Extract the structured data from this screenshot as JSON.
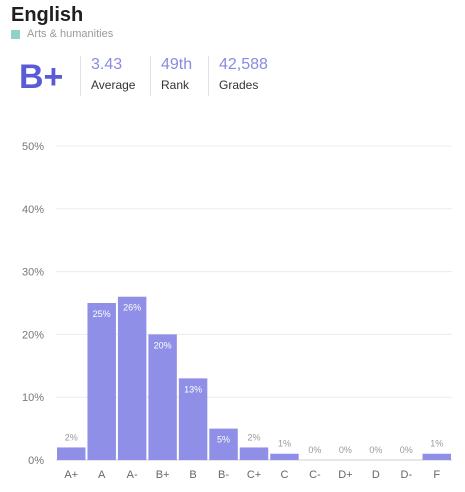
{
  "course": {
    "title": "English",
    "category": "Arts & humanities",
    "category_color": "#8fd3c7",
    "letter_grade": "B+"
  },
  "stats": [
    {
      "value": "3.43",
      "label": "Average"
    },
    {
      "value": "49th",
      "label": "Rank"
    },
    {
      "value": "42,588",
      "label": "Grades"
    }
  ],
  "colors": {
    "accent": "#5b5bd6",
    "bar": "#8f8fe8"
  },
  "chart_data": {
    "type": "bar",
    "categories": [
      "A+",
      "A",
      "A-",
      "B+",
      "B",
      "B-",
      "C+",
      "C",
      "C-",
      "D+",
      "D",
      "D-",
      "F"
    ],
    "values": [
      2,
      25,
      26,
      20,
      13,
      5,
      2,
      1,
      0,
      0,
      0,
      0,
      1
    ],
    "data_labels": [
      "2%",
      "25%",
      "26%",
      "20%",
      "13%",
      "5%",
      "2%",
      "1%",
      "0%",
      "0%",
      "0%",
      "0%",
      "1%"
    ],
    "y_ticks": [
      "0%",
      "10%",
      "20%",
      "30%",
      "40%",
      "50%"
    ],
    "ylim": [
      0,
      50
    ],
    "grid": true,
    "legend": "none"
  }
}
